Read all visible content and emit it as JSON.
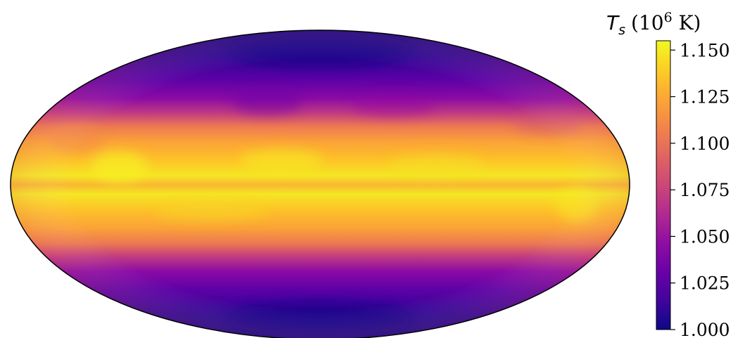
{
  "chart_data": {
    "type": "heatmap",
    "projection": "mollweide",
    "colormap": "plasma",
    "colorbar": {
      "title_symbol": "T",
      "title_subscript": "s",
      "title_unit": "(10",
      "title_exponent": "6",
      "title_unit_end": " K)",
      "vmin": 1.0,
      "vmax": 1.155,
      "ticks": [
        1.0,
        1.025,
        1.05,
        1.075,
        1.1,
        1.125,
        1.15
      ],
      "tick_labels": [
        "1.000",
        "1.025",
        "1.050",
        "1.075",
        "1.100",
        "1.125",
        "1.150"
      ]
    },
    "field_description_values": {
      "equator_band_value": 1.15,
      "equator_line_value": 1.12,
      "pole_value": 1.0
    }
  }
}
